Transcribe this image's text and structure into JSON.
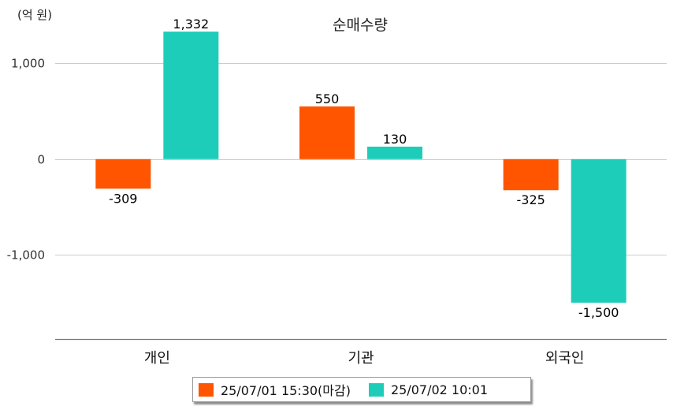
{
  "chart_data": {
    "type": "bar",
    "title": "순매수량",
    "unit_label": "(억 원)",
    "categories": [
      "개인",
      "기관",
      "외국인"
    ],
    "series": [
      {
        "name": "25/07/01 15:30(마감)",
        "color": "#ff5500",
        "values": [
          -309,
          550,
          -325
        ]
      },
      {
        "name": "25/07/02 10:01",
        "color": "#1ecdb9",
        "values": [
          1332,
          130,
          -1500
        ]
      }
    ],
    "value_labels": [
      [
        "-309",
        "550",
        "-325"
      ],
      [
        "1,332",
        "130",
        "-1,500"
      ]
    ],
    "y_ticks": [
      1000,
      0,
      -1000
    ],
    "y_tick_labels": [
      "1,000",
      "0",
      "-1,000"
    ],
    "ylim": [
      -1880,
      1580
    ],
    "grid": true,
    "legend_position": "bottom"
  }
}
